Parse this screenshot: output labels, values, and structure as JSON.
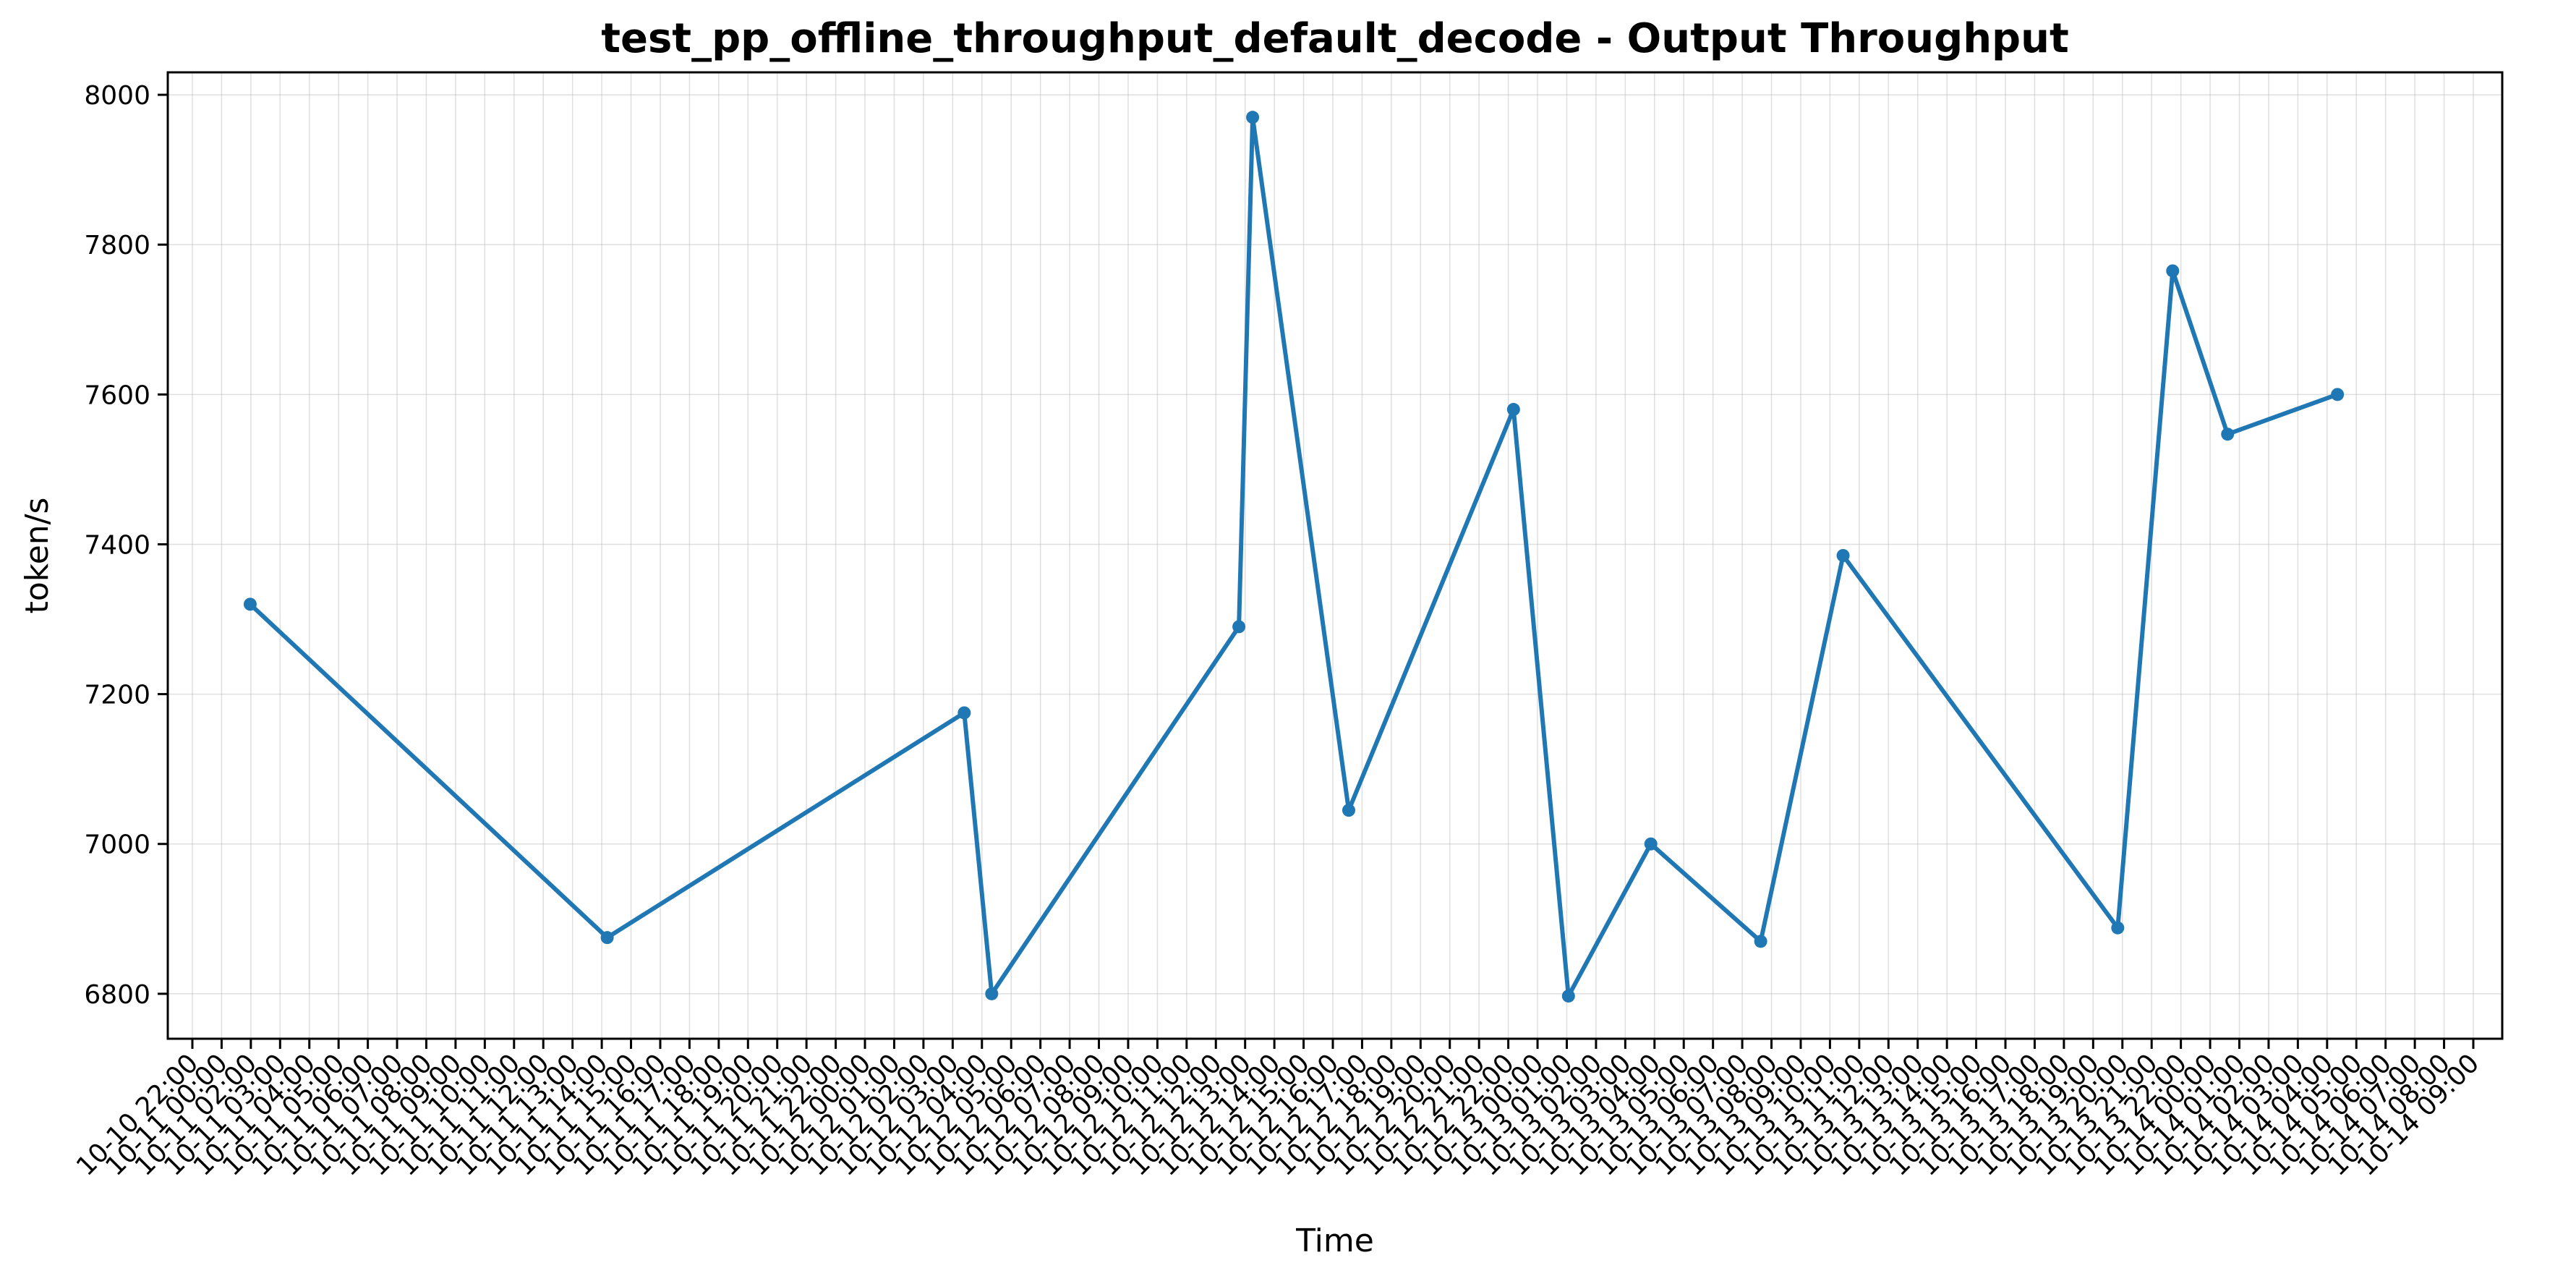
{
  "chart_data": {
    "type": "line",
    "title": "test_pp_offline_throughput_default_decode - Output Throughput",
    "xlabel": "Time",
    "ylabel": "token/s",
    "ylim": [
      6740,
      8030
    ],
    "y_ticks": [
      6800,
      7000,
      7200,
      7400,
      7600,
      7800,
      8000
    ],
    "grid": true,
    "colors": {
      "line": "#1f77b4",
      "grid": "#b0b0b0",
      "axis": "#000000"
    },
    "x_start": "2025-10-10 21:00",
    "x_end": "2025-10-14 10:00",
    "x_tick_labels": [
      "10-10 22:00",
      "10-11 00:00",
      "10-11 02:00",
      "10-11 03:00",
      "10-11 04:00",
      "10-11 05:00",
      "10-11 06:00",
      "10-11 07:00",
      "10-11 08:00",
      "10-11 09:00",
      "10-11 10:00",
      "10-11 11:00",
      "10-11 12:00",
      "10-11 13:00",
      "10-11 14:00",
      "10-11 15:00",
      "10-11 16:00",
      "10-11 17:00",
      "10-11 18:00",
      "10-11 19:00",
      "10-11 20:00",
      "10-11 21:00",
      "10-11 22:00",
      "10-12 00:00",
      "10-12 01:00",
      "10-12 02:00",
      "10-12 03:00",
      "10-12 04:00",
      "10-12 05:00",
      "10-12 06:00",
      "10-12 07:00",
      "10-12 08:00",
      "10-12 09:00",
      "10-12 10:00",
      "10-12 11:00",
      "10-12 12:00",
      "10-12 13:00",
      "10-12 14:00",
      "10-12 15:00",
      "10-12 16:00",
      "10-12 17:00",
      "10-12 18:00",
      "10-12 19:00",
      "10-12 20:00",
      "10-12 21:00",
      "10-12 22:00",
      "10-13 00:00",
      "10-13 01:00",
      "10-13 02:00",
      "10-13 03:00",
      "10-13 04:00",
      "10-13 05:00",
      "10-13 06:00",
      "10-13 07:00",
      "10-13 08:00",
      "10-13 09:00",
      "10-13 10:00",
      "10-13 11:00",
      "10-13 12:00",
      "10-13 13:00",
      "10-13 14:00",
      "10-13 15:00",
      "10-13 16:00",
      "10-13 17:00",
      "10-13 18:00",
      "10-13 19:00",
      "10-13 20:00",
      "10-13 21:00",
      "10-13 22:00",
      "10-14 00:00",
      "10-14 01:00",
      "10-14 02:00",
      "10-14 03:00",
      "10-14 04:00",
      "10-14 05:00",
      "10-14 06:00",
      "10-14 07:00",
      "10-14 08:00",
      "10-14 09:00"
    ],
    "series": [
      {
        "x": [
          "2025-10-11 00:00",
          "2025-10-11 13:00",
          "2025-10-12 02:00",
          "2025-10-12 03:00",
          "2025-10-12 12:00",
          "2025-10-12 12:30",
          "2025-10-12 16:00",
          "2025-10-12 22:00",
          "2025-10-13 00:00",
          "2025-10-13 03:00",
          "2025-10-13 07:00",
          "2025-10-13 10:00",
          "2025-10-13 20:00",
          "2025-10-13 22:00",
          "2025-10-14 00:00",
          "2025-10-14 04:00"
        ],
        "values": [
          7320,
          6875,
          7175,
          6800,
          7290,
          7970,
          7045,
          7580,
          6797,
          7000,
          6870,
          7385,
          6888,
          7765,
          7547,
          7600
        ]
      }
    ]
  }
}
